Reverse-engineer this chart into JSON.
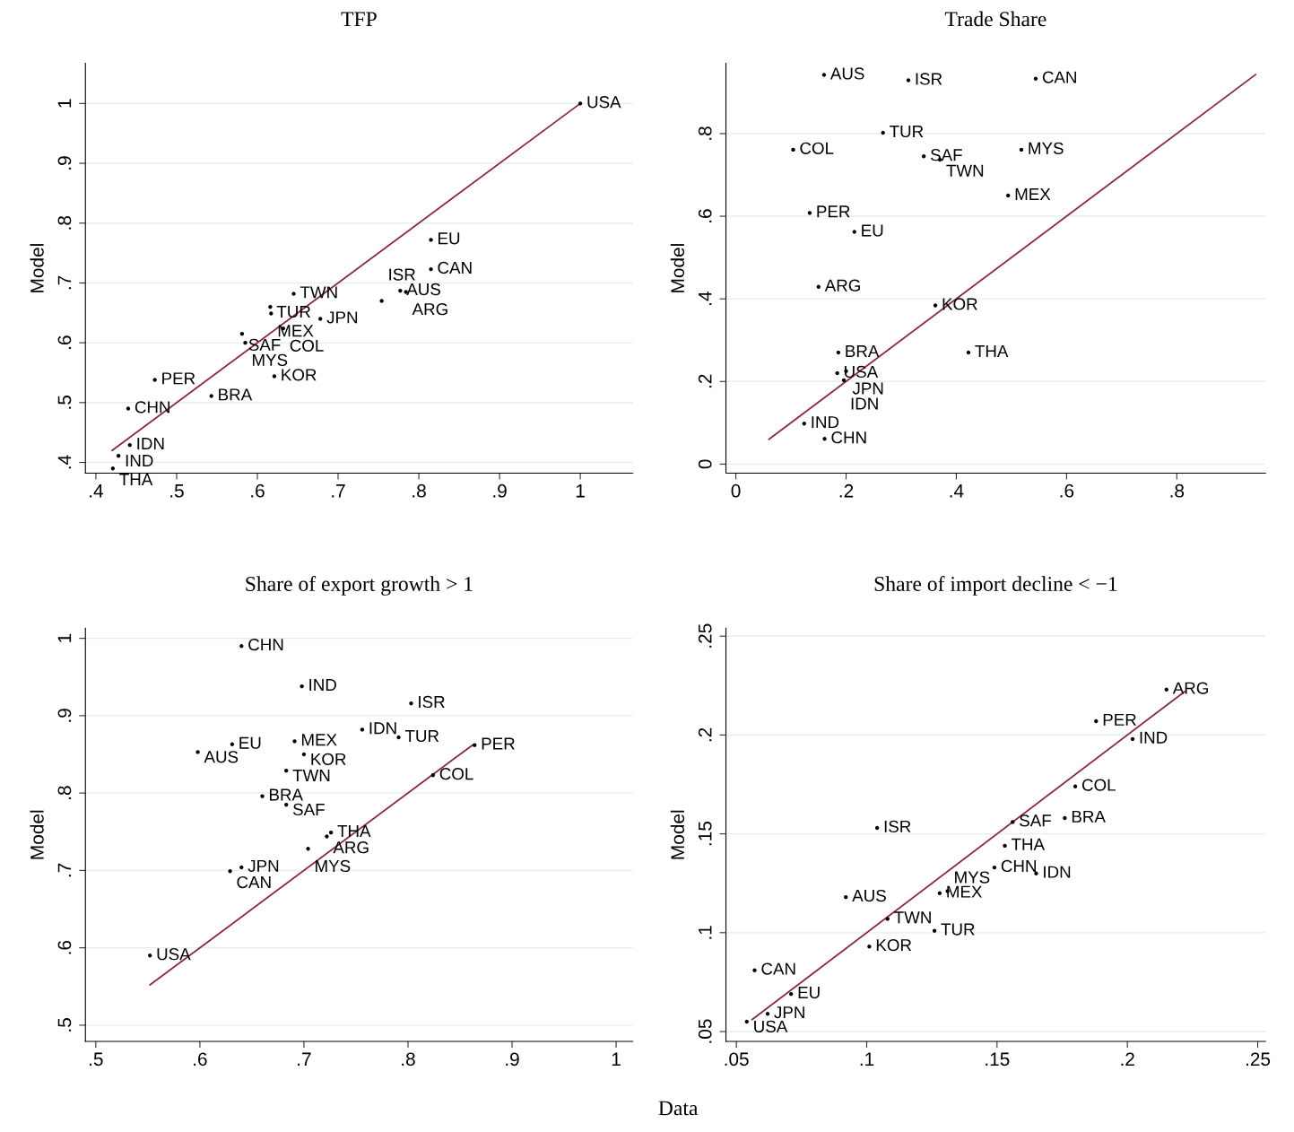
{
  "chart_data": [
    {
      "type": "scatter",
      "title": "TFP",
      "ylabel": "Model",
      "grid": "y",
      "xlim": [
        0.387,
        1.065
      ],
      "ylim": [
        0.382,
        1.067
      ],
      "xticks": [
        {
          "value": 0.4,
          "label": ".4"
        },
        {
          "value": 0.5,
          "label": ".5"
        },
        {
          "value": 0.6,
          "label": ".6"
        },
        {
          "value": 0.7,
          "label": ".7"
        },
        {
          "value": 0.8,
          "label": ".8"
        },
        {
          "value": 0.9,
          "label": ".9"
        },
        1
      ],
      "yticks": [
        {
          "value": 0.4,
          "label": ".4"
        },
        {
          "value": 0.5,
          "label": ".5"
        },
        {
          "value": 0.6,
          "label": ".6"
        },
        {
          "value": 0.7,
          "label": ".7"
        },
        {
          "value": 0.8,
          "label": ".8"
        },
        {
          "value": 0.9,
          "label": ".9"
        },
        1
      ],
      "series": [
        {
          "type": "line",
          "color": "#8b2a3a",
          "x": [
            0.42,
            1.0
          ],
          "values": [
            0.42,
            1.0
          ]
        },
        {
          "color": "#000000",
          "marker": "circle",
          "value_labels": [
            "USA",
            "EU",
            "CAN",
            "AUS",
            "ARG",
            "ISR",
            "TWN",
            "TUR",
            "MEX",
            "JPN",
            "COL",
            "SAF",
            "MYS",
            "KOR",
            "PER",
            "BRA",
            "CHN",
            "IDN",
            "IND",
            "THA"
          ],
          "x": [
            1.0,
            0.815,
            0.815,
            0.777,
            0.784,
            0.754,
            0.645,
            0.616,
            0.617,
            0.678,
            0.632,
            0.581,
            0.585,
            0.621,
            0.473,
            0.543,
            0.44,
            0.442,
            0.428,
            0.421
          ],
          "values": [
            1.0,
            0.772,
            0.723,
            0.687,
            0.685,
            0.67,
            0.682,
            0.66,
            0.649,
            0.64,
            0.624,
            0.615,
            0.6,
            0.544,
            0.538,
            0.511,
            0.49,
            0.429,
            0.411,
            0.39
          ]
        }
      ]
    },
    {
      "type": "scatter",
      "title": "Trade Share",
      "ylabel": "Model",
      "grid": "y",
      "xlim": [
        -0.018,
        0.961
      ],
      "ylim": [
        -0.022,
        0.97
      ],
      "xticks": [
        0,
        {
          "value": 0.2,
          "label": ".2"
        },
        {
          "value": 0.4,
          "label": ".4"
        },
        {
          "value": 0.6,
          "label": ".6"
        },
        {
          "value": 0.8,
          "label": ".8"
        }
      ],
      "yticks": [
        0,
        {
          "value": 0.2,
          "label": ".2"
        },
        {
          "value": 0.4,
          "label": ".4"
        },
        {
          "value": 0.6,
          "label": ".6"
        },
        {
          "value": 0.8,
          "label": ".8"
        }
      ],
      "series": [
        {
          "type": "line",
          "color": "#8b2a3a",
          "x": [
            0.06,
            0.943
          ],
          "values": [
            0.06,
            0.943
          ]
        },
        {
          "color": "#000000",
          "marker": "circle",
          "value_labels": [
            "AUS",
            "ISR",
            "CAN",
            "TUR",
            "COL",
            "SAF",
            "TWN",
            "MYS",
            "MEX",
            "PER",
            "EU",
            "ARG",
            "KOR",
            "THA",
            "BRA",
            "USA",
            "JPN",
            "IDN",
            "IND",
            "CHN"
          ],
          "x": [
            0.16,
            0.313,
            0.544,
            0.267,
            0.104,
            0.341,
            0.37,
            0.518,
            0.494,
            0.134,
            0.215,
            0.15,
            0.362,
            0.422,
            0.186,
            0.184,
            0.2,
            0.196,
            0.124,
            0.161
          ],
          "values": [
            0.942,
            0.929,
            0.933,
            0.802,
            0.761,
            0.745,
            0.737,
            0.761,
            0.65,
            0.608,
            0.562,
            0.429,
            0.384,
            0.27,
            0.27,
            0.22,
            0.225,
            0.203,
            0.098,
            0.061
          ]
        }
      ]
    },
    {
      "type": "scatter",
      "title": "Share of export growth > 1",
      "ylabel": "Model",
      "xlabel": "Data",
      "grid": "y",
      "xlim": [
        0.49,
        1.016
      ],
      "ylim": [
        0.479,
        1.013
      ],
      "xticks": [
        {
          "value": 0.5,
          "label": ".5"
        },
        {
          "value": 0.6,
          "label": ".6"
        },
        {
          "value": 0.7,
          "label": ".7"
        },
        {
          "value": 0.8,
          "label": ".8"
        },
        {
          "value": 0.9,
          "label": ".9"
        },
        1
      ],
      "yticks": [
        {
          "value": 0.5,
          "label": ".5"
        },
        {
          "value": 0.6,
          "label": ".6"
        },
        {
          "value": 0.7,
          "label": ".7"
        },
        {
          "value": 0.8,
          "label": ".8"
        },
        {
          "value": 0.9,
          "label": ".9"
        },
        1
      ],
      "series": [
        {
          "type": "line",
          "color": "#8b2a3a",
          "x": [
            0.552,
            0.862
          ],
          "values": [
            0.552,
            0.862
          ]
        },
        {
          "color": "#000000",
          "marker": "circle",
          "value_labels": [
            "CHN",
            "IND",
            "ISR",
            "IDN",
            "TUR",
            "PER",
            "EU",
            "AUS",
            "MEX",
            "KOR",
            "TWN",
            "COL",
            "BRA",
            "SAF",
            "THA",
            "ARG",
            "MYS",
            "JPN",
            "CAN",
            "USA"
          ],
          "x": [
            0.64,
            0.698,
            0.803,
            0.756,
            0.791,
            0.864,
            0.631,
            0.598,
            0.691,
            0.7,
            0.683,
            0.824,
            0.66,
            0.683,
            0.726,
            0.722,
            0.704,
            0.64,
            0.629,
            0.552
          ],
          "values": [
            0.99,
            0.938,
            0.916,
            0.882,
            0.872,
            0.862,
            0.863,
            0.853,
            0.867,
            0.85,
            0.829,
            0.823,
            0.796,
            0.785,
            0.749,
            0.744,
            0.728,
            0.704,
            0.699,
            0.59
          ]
        }
      ]
    },
    {
      "type": "scatter",
      "title": "Share of import decline < −1",
      "ylabel": "Model",
      "grid": "y",
      "xlim": [
        0.046,
        0.253
      ],
      "ylim": [
        0.045,
        0.254
      ],
      "xticks": [
        {
          "value": 0.05,
          "label": ".05"
        },
        {
          "value": 0.1,
          "label": ".1"
        },
        {
          "value": 0.15,
          "label": ".15"
        },
        {
          "value": 0.2,
          "label": ".2"
        },
        {
          "value": 0.25,
          "label": ".25"
        }
      ],
      "yticks": [
        {
          "value": 0.05,
          "label": ".05"
        },
        {
          "value": 0.1,
          "label": ".1"
        },
        {
          "value": 0.15,
          "label": ".15"
        },
        {
          "value": 0.2,
          "label": ".2"
        },
        {
          "value": 0.25,
          "label": ".25"
        }
      ],
      "series": [
        {
          "type": "line",
          "color": "#8b2a3a",
          "x": [
            0.056,
            0.222
          ],
          "values": [
            0.056,
            0.222
          ]
        },
        {
          "color": "#000000",
          "marker": "circle",
          "value_labels": [
            "ARG",
            "PER",
            "IND",
            "COL",
            "BRA",
            "SAF",
            "THA",
            "CHN",
            "IDN",
            "MEX",
            "MYS",
            "ISR",
            "AUS",
            "TWN",
            "TUR",
            "KOR",
            "CAN",
            "EU",
            "JPN",
            "USA"
          ],
          "x": [
            0.215,
            0.188,
            0.202,
            0.18,
            0.176,
            0.156,
            0.153,
            0.149,
            0.165,
            0.128,
            0.131,
            0.104,
            0.092,
            0.108,
            0.126,
            0.101,
            0.057,
            0.071,
            0.062,
            0.054
          ],
          "values": [
            0.223,
            0.207,
            0.198,
            0.174,
            0.158,
            0.156,
            0.144,
            0.133,
            0.13,
            0.12,
            0.121,
            0.153,
            0.118,
            0.107,
            0.101,
            0.093,
            0.081,
            0.069,
            0.059,
            0.055
          ]
        }
      ]
    }
  ]
}
